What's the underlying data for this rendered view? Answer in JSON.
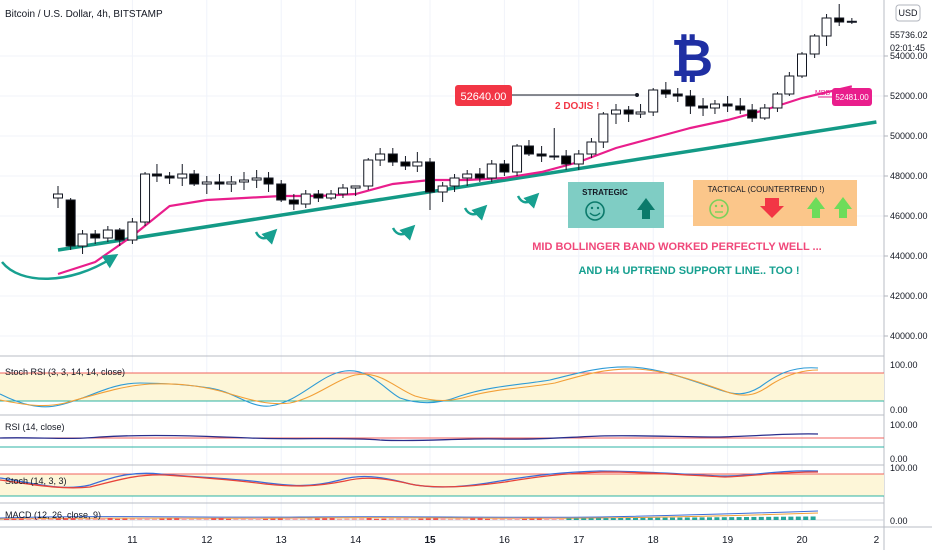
{
  "header": {
    "title": "Bitcoin / U.S. Dollar, 4h, BITSTAMP",
    "currency_button": "USD"
  },
  "price_axis": {
    "current_price": "55736.02",
    "countdown": "02:01:45",
    "ticks": [
      "54000.00",
      "52000.00",
      "50000.00",
      "48000.00",
      "46000.00",
      "44000.00",
      "42000.00",
      "40000.00"
    ]
  },
  "time_axis": {
    "ticks": [
      "11",
      "12",
      "13",
      "14",
      "15",
      "16",
      "17",
      "18",
      "19",
      "20",
      "2"
    ]
  },
  "annotations": {
    "bitcoin_symbol": "₿",
    "price_label": "52640.00",
    "dojis": "2 DOJIS !",
    "mbb_tag": "MBB",
    "mbb_value": "52481.00",
    "strategic_title": "STRATEGIC",
    "tactical_title": "TACTICAL (COUNTERTREND !)",
    "note_line1": "MID BOLLINGER BAND WORKED PERFECTLY WELL ...",
    "note_line2": "AND H4 UPTREND SUPPORT LINE.. TOO !"
  },
  "indicators": [
    {
      "name": "Stoch RSI (3, 3, 14, 14, close)",
      "top": "100.00",
      "bottom": "0.00"
    },
    {
      "name": "RSI (14, close)",
      "top": "100.00",
      "bottom": "0.00"
    },
    {
      "name": "Stoch (14, 3, 3)",
      "top": "100.00"
    },
    {
      "name": "MACD (12, 26, close, 9)",
      "bottom": "0.00"
    }
  ],
  "colors": {
    "bull": "#ffffff",
    "bear": "#000000",
    "mbb": "#e91e8c",
    "trendline": "#139a86",
    "note1": "#f0487a",
    "note2": "#17a090",
    "price_label_bg": "#f23645",
    "strategic_bg": "#7fcdc4",
    "tactical_bg": "#fbc68a",
    "bitcoin": "#1f2fa3"
  },
  "chart_data": {
    "type": "candlestick",
    "ylim": [
      39000,
      56800
    ],
    "x_day_ticks": [
      11,
      12,
      13,
      14,
      15,
      16,
      17,
      18,
      19,
      20
    ],
    "candles": [
      [
        10.0,
        46900,
        47500,
        46400,
        47100
      ],
      [
        10.17,
        46800,
        46900,
        44300,
        44500
      ],
      [
        10.33,
        44500,
        45300,
        44100,
        45100
      ],
      [
        10.5,
        45100,
        45300,
        44600,
        44900
      ],
      [
        10.67,
        44900,
        45500,
        44700,
        45300
      ],
      [
        10.83,
        45300,
        45400,
        44500,
        44800
      ],
      [
        11.0,
        44800,
        45900,
        44600,
        45700
      ],
      [
        11.17,
        45700,
        48200,
        45500,
        48100
      ],
      [
        11.33,
        48100,
        48600,
        47700,
        48000
      ],
      [
        11.5,
        48000,
        48200,
        47600,
        47900
      ],
      [
        11.67,
        47900,
        48600,
        47500,
        48100
      ],
      [
        11.83,
        48100,
        48300,
        47500,
        47600
      ],
      [
        12.0,
        47600,
        48000,
        47100,
        47700
      ],
      [
        12.17,
        47700,
        48100,
        47300,
        47600
      ],
      [
        12.33,
        47600,
        48000,
        47200,
        47700
      ],
      [
        12.5,
        47700,
        48200,
        47300,
        47800
      ],
      [
        12.67,
        47800,
        48300,
        47400,
        47900
      ],
      [
        12.83,
        47900,
        48200,
        47200,
        47600
      ],
      [
        13.0,
        47600,
        47800,
        46700,
        46800
      ],
      [
        13.17,
        46800,
        47100,
        46300,
        46600
      ],
      [
        13.33,
        46600,
        47300,
        46400,
        47100
      ],
      [
        13.5,
        47100,
        47300,
        46700,
        46900
      ],
      [
        13.67,
        46900,
        47300,
        46800,
        47100
      ],
      [
        13.83,
        47100,
        47600,
        46900,
        47400
      ],
      [
        14.0,
        47400,
        47500,
        47000,
        47500
      ],
      [
        14.17,
        47500,
        48900,
        47300,
        48800
      ],
      [
        14.33,
        48800,
        49400,
        48500,
        49100
      ],
      [
        14.5,
        49100,
        49400,
        48500,
        48700
      ],
      [
        14.67,
        48700,
        49000,
        48300,
        48500
      ],
      [
        14.83,
        48500,
        49200,
        48200,
        48700
      ],
      [
        15.0,
        48700,
        48900,
        46300,
        47200
      ],
      [
        15.17,
        47200,
        47700,
        46700,
        47500
      ],
      [
        15.33,
        47500,
        48100,
        47200,
        47900
      ],
      [
        15.5,
        47900,
        48300,
        47500,
        48100
      ],
      [
        15.67,
        48100,
        48400,
        47700,
        47900
      ],
      [
        15.83,
        47900,
        48800,
        47700,
        48600
      ],
      [
        16.0,
        48600,
        48800,
        48000,
        48200
      ],
      [
        16.17,
        48200,
        49600,
        48000,
        49500
      ],
      [
        16.33,
        49500,
        49800,
        49000,
        49100
      ],
      [
        16.5,
        49100,
        49500,
        48700,
        49000
      ],
      [
        16.67,
        49000,
        50400,
        48800,
        49000
      ],
      [
        16.83,
        49000,
        49300,
        48300,
        48600
      ],
      [
        17.0,
        48600,
        49300,
        48300,
        49100
      ],
      [
        17.17,
        49100,
        49900,
        48900,
        49700
      ],
      [
        17.33,
        49700,
        51200,
        49400,
        51100
      ],
      [
        17.5,
        51100,
        51600,
        50600,
        51300
      ],
      [
        17.67,
        51300,
        51500,
        50700,
        51100
      ],
      [
        17.83,
        51100,
        51600,
        50900,
        51200
      ],
      [
        18.0,
        51200,
        52400,
        51000,
        52300
      ],
      [
        18.17,
        52300,
        52700,
        51900,
        52100
      ],
      [
        18.33,
        52100,
        52400,
        51700,
        52000
      ],
      [
        18.5,
        52000,
        52300,
        51100,
        51500
      ],
      [
        18.67,
        51500,
        51900,
        51000,
        51400
      ],
      [
        18.83,
        51400,
        51800,
        51100,
        51600
      ],
      [
        19.0,
        51600,
        52000,
        51200,
        51500
      ],
      [
        19.17,
        51500,
        51900,
        51100,
        51300
      ],
      [
        19.33,
        51300,
        51600,
        50700,
        50900
      ],
      [
        19.5,
        50900,
        51600,
        50800,
        51400
      ],
      [
        19.67,
        51400,
        52200,
        51200,
        52100
      ],
      [
        19.83,
        52100,
        53200,
        52000,
        53000
      ],
      [
        20.0,
        53000,
        54200,
        52900,
        54100
      ],
      [
        20.17,
        54100,
        55100,
        53900,
        55000
      ],
      [
        20.33,
        55000,
        56100,
        54500,
        55900
      ],
      [
        20.5,
        55900,
        56600,
        55500,
        55700
      ],
      [
        20.67,
        55700,
        55900,
        55600,
        55736
      ]
    ],
    "mbb": [
      [
        10.0,
        43100
      ],
      [
        10.5,
        43700
      ],
      [
        11.0,
        45000
      ],
      [
        11.5,
        46500
      ],
      [
        12.0,
        46800
      ],
      [
        12.5,
        46900
      ],
      [
        13.0,
        47000
      ],
      [
        13.5,
        47000
      ],
      [
        14.0,
        47100
      ],
      [
        14.5,
        47600
      ],
      [
        15.0,
        47800
      ],
      [
        15.5,
        47800
      ],
      [
        16.0,
        47900
      ],
      [
        16.5,
        48200
      ],
      [
        17.0,
        48700
      ],
      [
        17.5,
        49400
      ],
      [
        18.0,
        49900
      ],
      [
        18.5,
        50400
      ],
      [
        19.0,
        50800
      ],
      [
        19.5,
        51300
      ],
      [
        20.0,
        51900
      ],
      [
        20.67,
        52481
      ]
    ],
    "trendline": [
      [
        10.0,
        44300
      ],
      [
        21.0,
        50700
      ]
    ]
  }
}
